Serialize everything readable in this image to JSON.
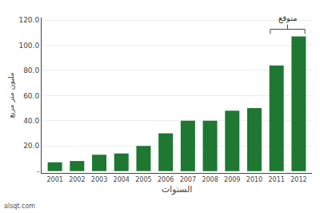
{
  "chart_data": {
    "type": "bar",
    "categories": [
      "2001",
      "2002",
      "2003",
      "2004",
      "2005",
      "2006",
      "2007",
      "2008",
      "2009",
      "2010",
      "2011",
      "2012"
    ],
    "values": [
      7,
      8,
      13,
      14,
      20,
      30,
      40,
      40,
      48,
      50,
      84,
      107
    ],
    "color": "#1e7832",
    "xlabel": "السنوات",
    "ylabel": "مليون متر مربع",
    "ylim": [
      -1.5,
      122
    ],
    "yticks": [
      {
        "value": 0,
        "label": "-"
      },
      {
        "value": 20,
        "label": "20.0"
      },
      {
        "value": 40,
        "label": "40.0"
      },
      {
        "value": 60,
        "label": "60.0"
      },
      {
        "value": 80,
        "label": "80.0"
      },
      {
        "value": 100,
        "label": "100.0"
      },
      {
        "value": 120,
        "label": "120.0"
      }
    ],
    "grid": true,
    "annotations": [
      {
        "text": "متوقع",
        "categories": [
          "2011",
          "2012"
        ]
      },
      {
        "text": "alsqt.com"
      }
    ]
  }
}
